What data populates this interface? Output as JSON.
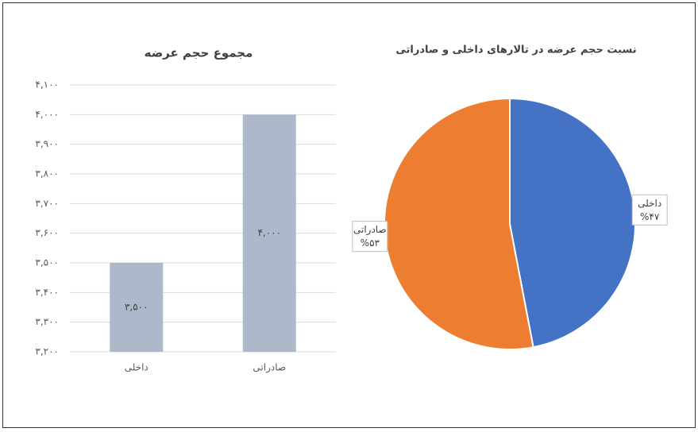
{
  "chart_data": [
    {
      "type": "bar",
      "title": "مجموع حجم عرضه",
      "categories": [
        "داخلی",
        "صادراتی"
      ],
      "values": [
        3500,
        4000
      ],
      "value_labels": [
        "۳,۵۰۰",
        "۴,۰۰۰"
      ],
      "color": "#adb9ca",
      "ylim": [
        3200,
        4100
      ],
      "yticks": [
        {
          "value": 3200,
          "label": "۳,۲۰۰"
        },
        {
          "value": 3300,
          "label": "۳,۳۰۰"
        },
        {
          "value": 3400,
          "label": "۳,۴۰۰"
        },
        {
          "value": 3500,
          "label": "۳,۵۰۰"
        },
        {
          "value": 3600,
          "label": "۳,۶۰۰"
        },
        {
          "value": 3700,
          "label": "۳,۷۰۰"
        },
        {
          "value": 3800,
          "label": "۳,۸۰۰"
        },
        {
          "value": 3900,
          "label": "۳,۹۰۰"
        },
        {
          "value": 4000,
          "label": "۴,۰۰۰"
        },
        {
          "value": 4100,
          "label": "۴,۱۰۰"
        }
      ],
      "grid": true
    },
    {
      "type": "pie",
      "title": "نسبت حجم عرضه در تالارهای داخلی و صادراتی",
      "categories": [
        "داخلی",
        "صادراتی"
      ],
      "values": [
        47,
        53
      ],
      "value_labels": [
        "%۴۷",
        "%۵۳"
      ],
      "colors": [
        "#4472c4",
        "#ed7d31"
      ]
    }
  ]
}
